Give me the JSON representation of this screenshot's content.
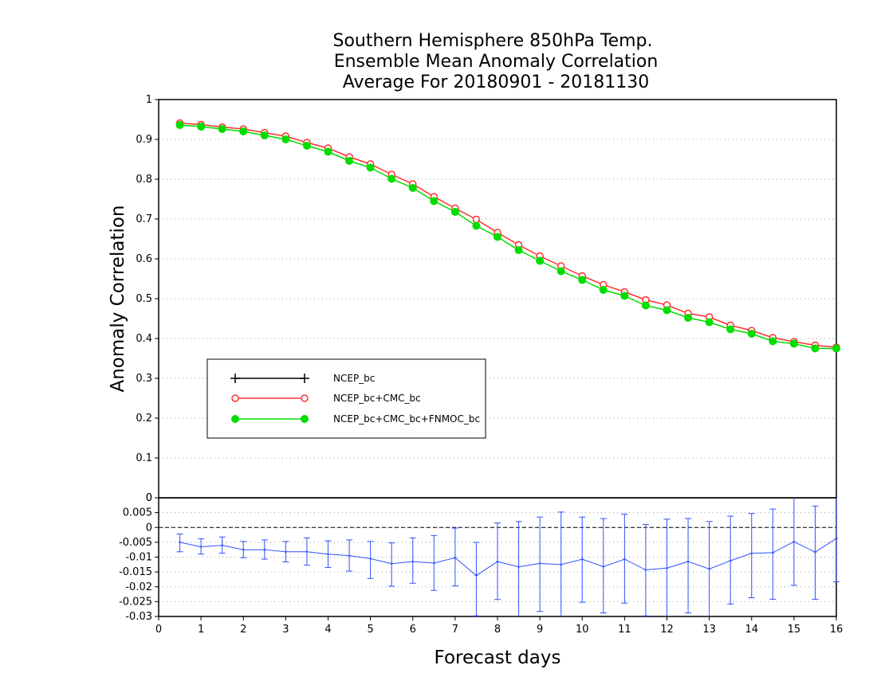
{
  "chart_data": {
    "type": "line",
    "title": [
      "Southern Hemisphere 850hPa Temp.",
      "Ensemble Mean Anomaly Correlation",
      "Average For 20180901 - 20181130"
    ],
    "xlabel": "Forecast days",
    "ylabel": "Anomaly Correlation",
    "x_ticks": [
      "0",
      "1",
      "2",
      "3",
      "4",
      "5",
      "6",
      "7",
      "8",
      "9",
      "10",
      "11",
      "12",
      "13",
      "14",
      "15",
      "16"
    ],
    "xlim": [
      0,
      16
    ],
    "top_panel": {
      "ylim": [
        0,
        1
      ],
      "y_ticks": [
        "0",
        "0.1",
        "0.2",
        "0.3",
        "0.4",
        "0.5",
        "0.6",
        "0.7",
        "0.8",
        "0.9",
        "1"
      ],
      "grid": "horizontal dotted",
      "legend_position": "middle-left",
      "x": [
        0.5,
        1,
        1.5,
        2,
        2.5,
        3,
        3.5,
        4,
        4.5,
        5,
        5.5,
        6,
        6.5,
        7,
        7.5,
        8,
        8.5,
        9,
        9.5,
        10,
        10.5,
        11,
        11.5,
        12,
        12.5,
        13,
        13.5,
        14,
        14.5,
        15,
        15.5,
        16
      ],
      "series": [
        {
          "name": "NCEP_bc",
          "color": "#000000",
          "marker": "plus",
          "values": []
        },
        {
          "name": "NCEP_bc+CMC_bc",
          "color": "#ff3030",
          "marker": "open-circle",
          "values": [
            0.941,
            0.937,
            0.931,
            0.926,
            0.917,
            0.908,
            0.892,
            0.878,
            0.856,
            0.838,
            0.812,
            0.788,
            0.756,
            0.727,
            0.699,
            0.666,
            0.635,
            0.607,
            0.582,
            0.557,
            0.535,
            0.517,
            0.497,
            0.484,
            0.463,
            0.454,
            0.433,
            0.42,
            0.402,
            0.392,
            0.383,
            0.378
          ]
        },
        {
          "name": "NCEP_bc+CMC_bc+FNMOC_bc",
          "color": "#00dd00",
          "marker": "filled-circle",
          "values": [
            0.936,
            0.932,
            0.926,
            0.92,
            0.91,
            0.9,
            0.884,
            0.869,
            0.846,
            0.829,
            0.801,
            0.778,
            0.745,
            0.718,
            0.683,
            0.655,
            0.622,
            0.595,
            0.569,
            0.547,
            0.522,
            0.507,
            0.483,
            0.471,
            0.452,
            0.441,
            0.423,
            0.412,
            0.393,
            0.387,
            0.375,
            0.375
          ]
        }
      ]
    },
    "bottom_panel": {
      "ylim": [
        -0.03,
        0.01
      ],
      "y_ticks": [
        "-0.03",
        "-0.025",
        "-0.02",
        "-0.015",
        "-0.01",
        "-0.005",
        "0",
        "0.005"
      ],
      "top_tick": "0",
      "grid": "horizontal dotted",
      "series": [
        {
          "color": "#3050ff",
          "marker": "plus",
          "values": [
            -0.005,
            -0.0065,
            -0.006,
            -0.0075,
            -0.0075,
            -0.0082,
            -0.0082,
            -0.009,
            -0.0095,
            -0.0105,
            -0.0122,
            -0.0115,
            -0.012,
            -0.0102,
            -0.0162,
            -0.0115,
            -0.0133,
            -0.0121,
            -0.0125,
            -0.0107,
            -0.0132,
            -0.0107,
            -0.0143,
            -0.0137,
            -0.0115,
            -0.014,
            -0.0112,
            -0.0087,
            -0.0085,
            -0.0048,
            -0.0083,
            -0.0037
          ],
          "err_low": [
            -0.0082,
            -0.009,
            -0.0087,
            -0.0102,
            -0.0107,
            -0.0116,
            -0.0127,
            -0.0135,
            -0.0147,
            -0.0172,
            -0.0198,
            -0.0188,
            -0.0212,
            -0.0197,
            -0.0298,
            -0.0243,
            -0.03,
            -0.0283,
            -0.03,
            -0.0252,
            -0.0288,
            -0.0255,
            -0.0298,
            -0.03,
            -0.0288,
            -0.03,
            -0.0258,
            -0.0237,
            -0.0242,
            -0.0195,
            -0.0242,
            -0.0183
          ],
          "err_high": [
            -0.0022,
            -0.0038,
            -0.0032,
            -0.0047,
            -0.0042,
            -0.0047,
            -0.0035,
            -0.0045,
            -0.0042,
            -0.0047,
            -0.0052,
            -0.0035,
            -0.0027,
            -0.0002,
            -0.005,
            0.0015,
            0.002,
            0.0035,
            0.0052,
            0.0035,
            0.003,
            0.0045,
            0.001,
            0.0028,
            0.003,
            0.002,
            0.0038,
            0.0047,
            0.0062,
            0.01,
            0.0072,
            0.01
          ]
        }
      ]
    }
  }
}
